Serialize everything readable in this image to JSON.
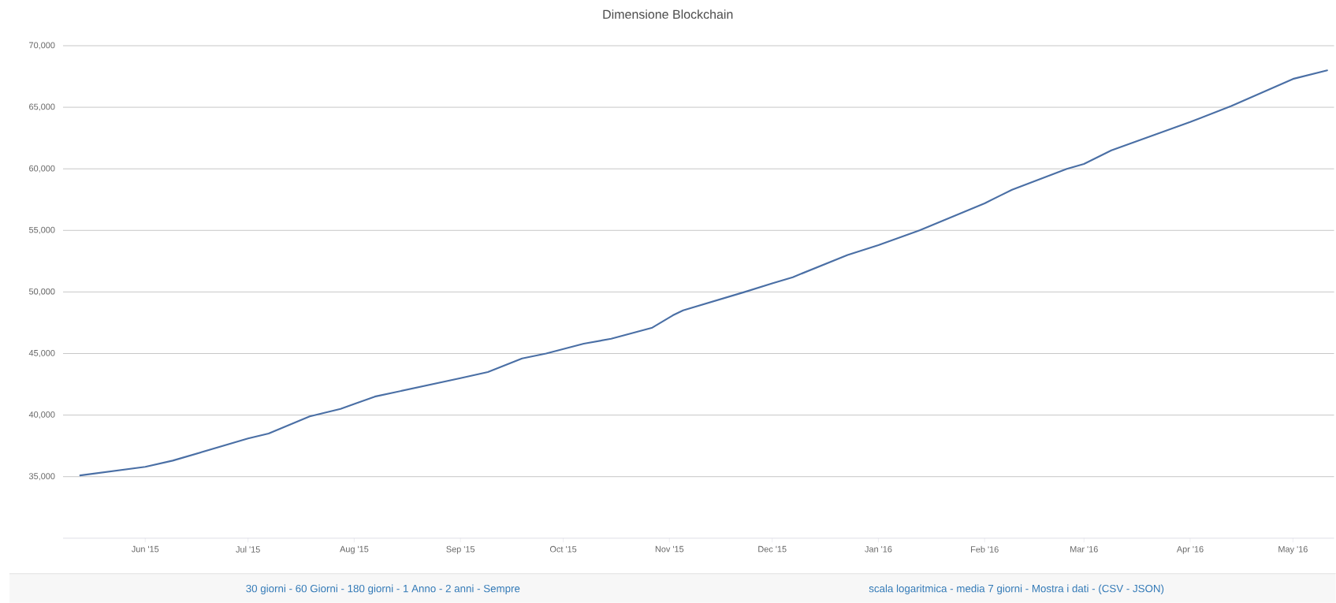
{
  "chart_data": {
    "type": "line",
    "title": "Dimensione Blockchain",
    "x": [
      "2015-05-13",
      "2015-06-01",
      "2015-06-09",
      "2015-07-01",
      "2015-07-07",
      "2015-07-19",
      "2015-07-28",
      "2015-08-01",
      "2015-08-07",
      "2015-09-01",
      "2015-09-09",
      "2015-09-19",
      "2015-09-26",
      "2015-10-07",
      "2015-10-15",
      "2015-10-27",
      "2015-11-02",
      "2015-11-05",
      "2015-11-23",
      "2015-12-01",
      "2015-12-07",
      "2015-12-23",
      "2016-01-01",
      "2016-01-13",
      "2016-02-01",
      "2016-02-09",
      "2016-02-25",
      "2016-03-01",
      "2016-03-09",
      "2016-04-01",
      "2016-04-13",
      "2016-05-01",
      "2016-05-11"
    ],
    "values": [
      35100,
      35800,
      36300,
      38100,
      38500,
      39900,
      40500,
      40900,
      41500,
      43000,
      43500,
      44600,
      45000,
      45800,
      46200,
      47100,
      48100,
      48500,
      50000,
      50700,
      51200,
      53000,
      53800,
      55000,
      57200,
      58300,
      60000,
      60400,
      61500,
      63800,
      65100,
      67300,
      68000
    ],
    "color": "#4a6fa5",
    "xlim": [
      "2015-05-08",
      "2016-05-13"
    ],
    "xticks": [
      {
        "value": "2015-06-01",
        "label": "Jun '15"
      },
      {
        "value": "2015-07-01",
        "label": "Jul '15"
      },
      {
        "value": "2015-08-01",
        "label": "Aug '15"
      },
      {
        "value": "2015-09-01",
        "label": "Sep '15"
      },
      {
        "value": "2015-10-01",
        "label": "Oct '15"
      },
      {
        "value": "2015-11-01",
        "label": "Nov '15"
      },
      {
        "value": "2015-12-01",
        "label": "Dec '15"
      },
      {
        "value": "2016-01-01",
        "label": "Jan '16"
      },
      {
        "value": "2016-02-01",
        "label": "Feb '16"
      },
      {
        "value": "2016-03-01",
        "label": "Mar '16"
      },
      {
        "value": "2016-04-01",
        "label": "Apr '16"
      },
      {
        "value": "2016-05-01",
        "label": "May '16"
      }
    ],
    "ylim": [
      30000,
      70000
    ],
    "yticks": [
      {
        "value": 35000,
        "label": "35,000"
      },
      {
        "value": 40000,
        "label": "40,000"
      },
      {
        "value": 45000,
        "label": "45,000"
      },
      {
        "value": 50000,
        "label": "50,000"
      },
      {
        "value": 55000,
        "label": "55,000"
      },
      {
        "value": 60000,
        "label": "60,000"
      },
      {
        "value": 65000,
        "label": "65,000"
      },
      {
        "value": 70000,
        "label": "70,000"
      }
    ],
    "grid": "y",
    "marker": "none",
    "line_style": "solid",
    "annotations": [
      "30 giorni - 60 Giorni - 180 giorni - 1 Anno - 2 anni - Sempre",
      "scala logaritmica - media 7 giorni - Mostra i dati - (CSV - JSON)"
    ]
  }
}
